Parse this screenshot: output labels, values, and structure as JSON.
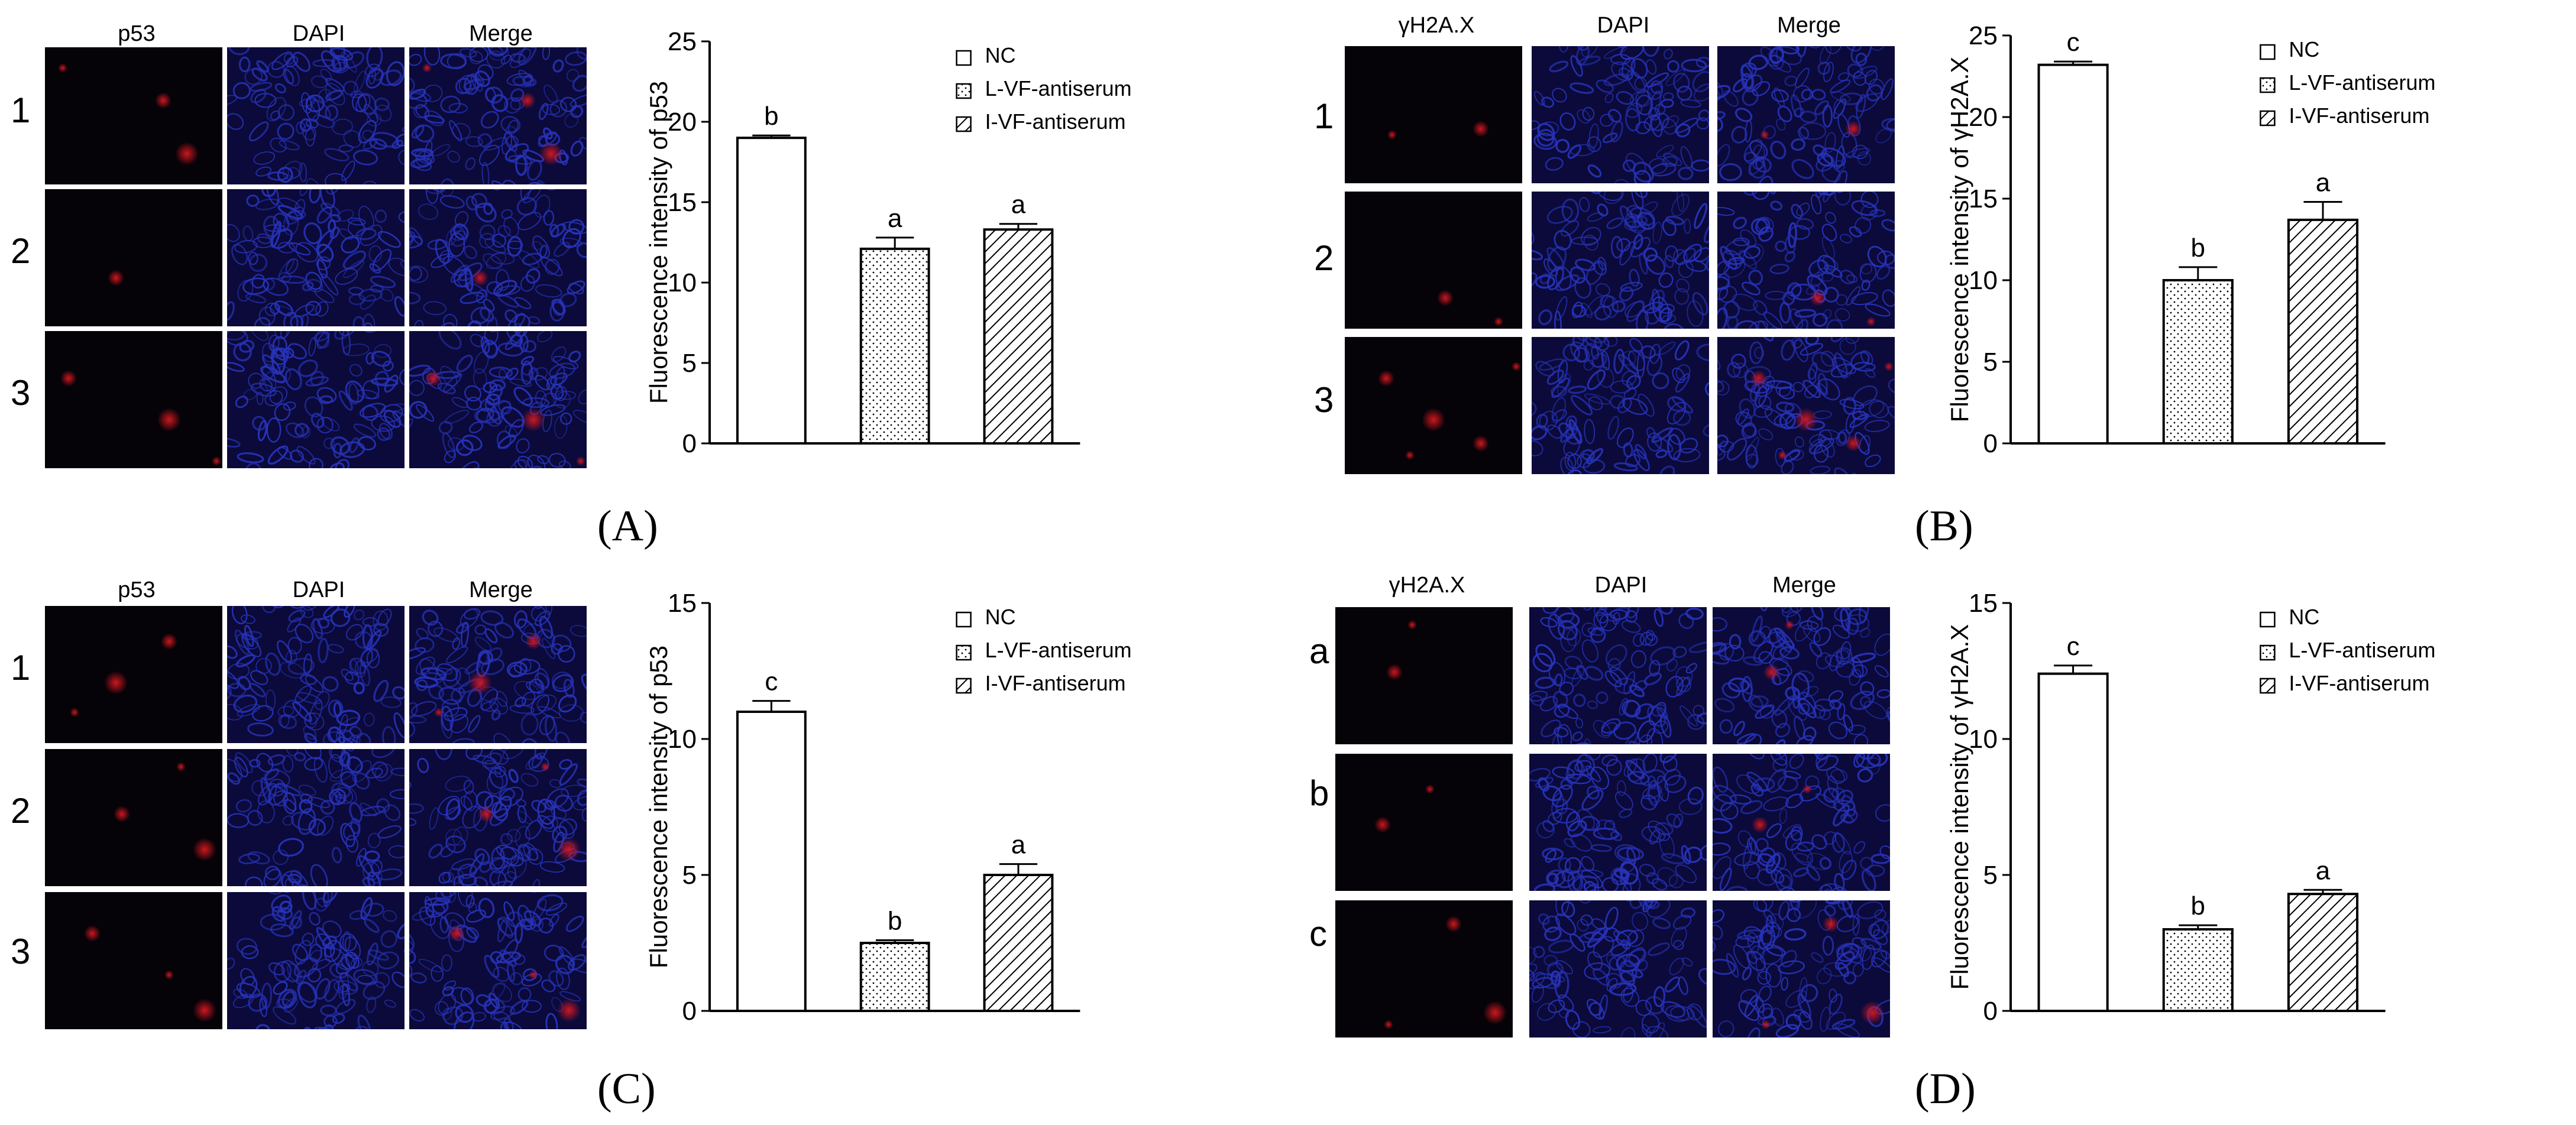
{
  "panels": [
    {
      "id": "A",
      "panel_label": "(A)",
      "micro": {
        "columns": [
          "p53",
          "DAPI",
          "Merge"
        ],
        "rows": [
          "1",
          "2",
          "3"
        ]
      },
      "signal": [
        [
          [
            30,
            35
          ],
          [
            200,
            90
          ],
          [
            240,
            180
          ]
        ],
        [
          [
            300,
            250
          ],
          [
            120,
            150
          ]
        ],
        [
          [
            290,
            220
          ],
          [
            40,
            80
          ],
          [
            210,
            150
          ]
        ]
      ]
    },
    {
      "id": "B",
      "panel_label": "(B)",
      "micro": {
        "columns": [
          "γH2A.X",
          "DAPI",
          "Merge"
        ],
        "rows": [
          "1",
          "2",
          "3"
        ]
      },
      "signal": [
        [
          [
            80,
            150
          ],
          [
            230,
            140
          ]
        ],
        [
          [
            260,
            220
          ],
          [
            170,
            180
          ]
        ],
        [
          [
            290,
            50
          ],
          [
            70,
            70
          ],
          [
            150,
            140
          ],
          [
            110,
            200
          ],
          [
            230,
            180
          ]
        ]
      ]
    },
    {
      "id": "C",
      "panel_label": "(C)",
      "micro": {
        "columns": [
          "p53",
          "DAPI",
          "Merge"
        ],
        "rows": [
          "1",
          "2",
          "3"
        ]
      },
      "signal": [
        [
          [
            50,
            180
          ],
          [
            210,
            60
          ],
          [
            120,
            130
          ]
        ],
        [
          [
            230,
            30
          ],
          [
            130,
            110
          ],
          [
            270,
            170
          ]
        ],
        [
          [
            210,
            140
          ],
          [
            80,
            70
          ],
          [
            270,
            200
          ]
        ]
      ]
    },
    {
      "id": "D",
      "panel_label": "(D)",
      "micro": {
        "columns": [
          "γH2A.X",
          "DAPI",
          "Merge"
        ],
        "rows": [
          "a",
          "b",
          "c"
        ]
      },
      "signal": [
        [
          [
            130,
            30
          ],
          [
            100,
            110
          ]
        ],
        [
          [
            160,
            60
          ],
          [
            80,
            120
          ]
        ],
        [
          [
            90,
            210
          ],
          [
            200,
            40
          ],
          [
            270,
            190
          ]
        ]
      ]
    }
  ],
  "chart_data": [
    {
      "type": "bar",
      "panel": "A",
      "ylabel": "Fluorescence  intensity of p53",
      "ylim": [
        0,
        25
      ],
      "yticks": [
        "0",
        "5",
        "10",
        "15",
        "20",
        "25"
      ],
      "categories": [
        "NC",
        "L-VF-antiserum",
        "I-VF-antiserum"
      ],
      "values": [
        19.0,
        12.1,
        13.3
      ],
      "errors": [
        0.15,
        0.7,
        0.35
      ],
      "letters": [
        "b",
        "a",
        "a"
      ],
      "legend": [
        "NC",
        "L-VF-antiserum",
        "I-VF-antiserum"
      ]
    },
    {
      "type": "bar",
      "panel": "B",
      "ylabel": "Fluorescence  intensity of γH2A.X",
      "ylim": [
        0,
        25
      ],
      "yticks": [
        "0",
        "5",
        "10",
        "15",
        "20",
        "25"
      ],
      "categories": [
        "NC",
        "L-VF-antiserum",
        "I-VF-antiserum"
      ],
      "values": [
        23.2,
        10.0,
        13.7
      ],
      "errors": [
        0.2,
        0.8,
        1.1
      ],
      "letters": [
        "c",
        "b",
        "a"
      ],
      "legend": [
        "NC",
        "L-VF-antiserum",
        "I-VF-antiserum"
      ]
    },
    {
      "type": "bar",
      "panel": "C",
      "ylabel": "Fluorescence  intensity of p53",
      "ylim": [
        0,
        15
      ],
      "yticks": [
        "0",
        "5",
        "10",
        "15"
      ],
      "categories": [
        "NC",
        "L-VF-antiserum",
        "I-VF-antiserum"
      ],
      "values": [
        11.0,
        2.5,
        5.0
      ],
      "errors": [
        0.4,
        0.1,
        0.4
      ],
      "letters": [
        "c",
        "b",
        "a"
      ],
      "legend": [
        "NC",
        "L-VF-antiserum",
        "I-VF-antiserum"
      ]
    },
    {
      "type": "bar",
      "panel": "D",
      "ylabel": "Fluorescence  intensity of γH2A.X",
      "ylim": [
        0,
        15
      ],
      "yticks": [
        "0",
        "5",
        "10",
        "15"
      ],
      "categories": [
        "NC",
        "L-VF-antiserum",
        "I-VF-antiserum"
      ],
      "values": [
        12.4,
        3.0,
        4.3
      ],
      "errors": [
        0.3,
        0.15,
        0.15
      ],
      "letters": [
        "c",
        "b",
        "a"
      ],
      "legend": [
        "NC",
        "L-VF-antiserum",
        "I-VF-antiserum"
      ]
    }
  ],
  "colors": {
    "axis": "#000000",
    "tile_dark": "#050208",
    "nuclei": "#2733b8",
    "nuclei_bg": "#0b0a3a",
    "signal_red": "#d81820",
    "bar_fill": "#ffffff"
  }
}
